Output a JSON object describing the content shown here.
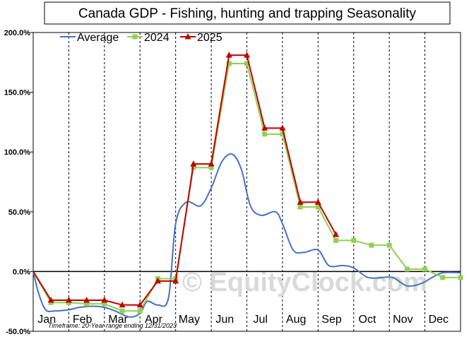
{
  "chart_data": {
    "type": "line",
    "title": "Canada GDP - Fishing, hunting and trapping Seasonality",
    "xlabel": "",
    "ylabel": "",
    "categories": [
      "Jan",
      "Feb",
      "Mar",
      "Apr",
      "May",
      "Jun",
      "Jul",
      "Aug",
      "Sep",
      "Oct",
      "Nov",
      "Dec"
    ],
    "y_ticks": [
      "-50.0%",
      "0.0%",
      "50.0%",
      "100.0%",
      "150.0%",
      "200.0%"
    ],
    "ylim": [
      -50,
      200
    ],
    "xlim": [
      0,
      12
    ],
    "grid": "vertical dashed lines at month boundaries",
    "legend_position": "top-left",
    "series": [
      {
        "name": "Average",
        "color": "#4472c4",
        "smooth": true,
        "points": [
          [
            0.0,
            0
          ],
          [
            0.15,
            -18
          ],
          [
            0.35,
            -32
          ],
          [
            0.6,
            -33
          ],
          [
            1.0,
            -32
          ],
          [
            1.3,
            -30
          ],
          [
            1.7,
            -29
          ],
          [
            2.0,
            -30
          ],
          [
            2.3,
            -33
          ],
          [
            2.7,
            -38
          ],
          [
            3.0,
            -35
          ],
          [
            3.2,
            -25
          ],
          [
            3.5,
            -28
          ],
          [
            3.8,
            -22
          ],
          [
            4.0,
            40
          ],
          [
            4.3,
            58
          ],
          [
            4.7,
            55
          ],
          [
            5.0,
            70
          ],
          [
            5.3,
            92
          ],
          [
            5.6,
            98
          ],
          [
            5.85,
            85
          ],
          [
            6.1,
            55
          ],
          [
            6.4,
            47
          ],
          [
            6.8,
            50
          ],
          [
            7.0,
            40
          ],
          [
            7.3,
            18
          ],
          [
            7.6,
            16
          ],
          [
            8.0,
            18
          ],
          [
            8.3,
            5
          ],
          [
            8.7,
            5
          ],
          [
            9.0,
            3
          ],
          [
            9.4,
            -5
          ],
          [
            9.8,
            -5
          ],
          [
            10.1,
            -5
          ],
          [
            10.5,
            -12
          ],
          [
            10.9,
            -10
          ],
          [
            11.2,
            -5
          ],
          [
            11.5,
            -1
          ],
          [
            12.0,
            -1
          ]
        ]
      },
      {
        "name": "2024",
        "color": "#92d050",
        "marker": "square",
        "points": [
          [
            0.0,
            0
          ],
          [
            0.5,
            -26
          ],
          [
            1.0,
            -26
          ],
          [
            1.5,
            -27
          ],
          [
            2.0,
            -27
          ],
          [
            2.5,
            -33
          ],
          [
            3.0,
            -33
          ],
          [
            3.5,
            -6
          ],
          [
            4.0,
            -6
          ],
          [
            4.5,
            87
          ],
          [
            5.0,
            87
          ],
          [
            5.5,
            174
          ],
          [
            6.0,
            174
          ],
          [
            6.5,
            115
          ],
          [
            7.0,
            115
          ],
          [
            7.5,
            54
          ],
          [
            8.0,
            54
          ],
          [
            8.5,
            26
          ],
          [
            9.0,
            26
          ],
          [
            9.5,
            22
          ],
          [
            10.0,
            22
          ],
          [
            10.5,
            2
          ],
          [
            11.0,
            2
          ],
          [
            11.5,
            -5
          ],
          [
            12.0,
            -5
          ]
        ]
      },
      {
        "name": "2025",
        "color": "#c00000",
        "marker": "triangle",
        "points": [
          [
            0.0,
            0
          ],
          [
            0.5,
            -24
          ],
          [
            1.0,
            -24
          ],
          [
            1.5,
            -24
          ],
          [
            2.0,
            -24
          ],
          [
            2.5,
            -28
          ],
          [
            3.0,
            -28
          ],
          [
            3.5,
            -8
          ],
          [
            4.0,
            -8
          ],
          [
            4.5,
            90
          ],
          [
            5.0,
            90
          ],
          [
            5.5,
            181
          ],
          [
            6.0,
            181
          ],
          [
            6.5,
            120
          ],
          [
            7.0,
            120
          ],
          [
            7.5,
            58
          ],
          [
            8.0,
            58
          ],
          [
            8.5,
            31
          ]
        ]
      }
    ],
    "footnote": "Timeframe: 20-Year range ending 12/31/2023",
    "watermark": "© EquityClock.com"
  }
}
